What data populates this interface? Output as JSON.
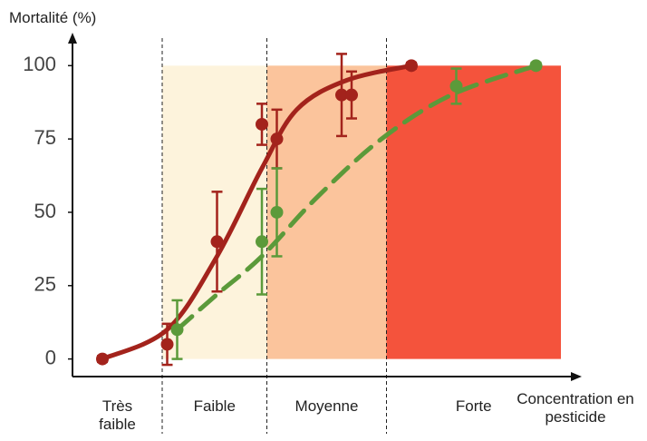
{
  "chart_data": {
    "type": "scatter",
    "y_label": "Mortalité (%)",
    "x_label": "Concentration en pesticide",
    "xlim": [
      0,
      100
    ],
    "ylim": [
      -6,
      110
    ],
    "yticks": [
      0,
      25,
      50,
      75,
      100
    ],
    "zones": {
      "labels": [
        "Très faible",
        "Faible",
        "Moyenne",
        "Forte"
      ],
      "edges": [
        0,
        18,
        39,
        63,
        98
      ],
      "colors": [
        "#ffffff",
        "#fdf3dc",
        "#fbc49c",
        "#f4533c"
      ],
      "top": 100
    },
    "series": [
      {
        "color": "#a3231c",
        "x": [
          6,
          19,
          29,
          38,
          41,
          54,
          56,
          68
        ],
        "values": [
          0,
          5,
          40,
          80,
          75,
          90,
          90,
          100
        ],
        "errors": [
          1,
          7,
          17,
          7,
          10,
          14,
          8,
          1
        ]
      },
      {
        "color": "#5b9a3a",
        "x": [
          21,
          38,
          41,
          77,
          93
        ],
        "values": [
          10,
          40,
          50,
          93,
          100
        ],
        "errors": [
          10,
          18,
          15,
          6,
          1
        ]
      }
    ],
    "fits": [
      {
        "color": "#a3231c",
        "dashed": false,
        "x": [
          6,
          19,
          29,
          38,
          45,
          55,
          68
        ],
        "values": [
          0,
          10,
          35,
          65,
          85,
          95,
          100
        ]
      },
      {
        "color": "#5b9a3a",
        "dashed": true,
        "x": [
          21,
          29,
          38,
          49,
          62,
          76,
          93
        ],
        "values": [
          10,
          22,
          35,
          55,
          75,
          90,
          100
        ]
      }
    ]
  }
}
